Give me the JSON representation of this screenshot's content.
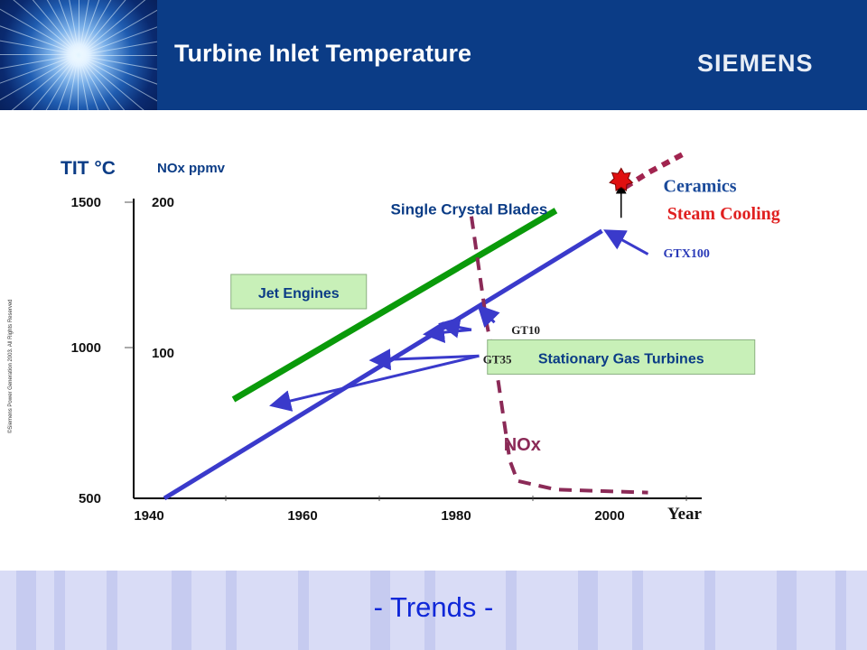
{
  "slide": {
    "title": "Turbine Inlet Temperature",
    "brand": "SIEMENS",
    "copyright": "©Siemens Power Generation 2003. All Rights Reserved",
    "footer": "- Trends -"
  },
  "colors": {
    "header": "#0b3c86",
    "jet_engines": "#0a9a0a",
    "stationary": "#3a3acb",
    "nox": "#8b2a57",
    "ceramics": "#a1244f",
    "label_box": "#c8f0b8",
    "steam_cooling": "#e02020",
    "footer_text": "#0f27d8"
  },
  "chart_data": {
    "type": "line",
    "title": "",
    "xlabel": "Year",
    "ylabel": "TIT °C",
    "y2label": "NOx ppmv",
    "x_ticks": [
      1940,
      1960,
      1980,
      2000
    ],
    "y_ticks": [
      500,
      1000,
      1500
    ],
    "y2_ticks": [
      100,
      200
    ],
    "xlim": [
      1938,
      2012
    ],
    "ylim": [
      500,
      1500
    ],
    "series": [
      {
        "name": "Jet Engines",
        "style": "solid",
        "x": [
          1951,
          1993
        ],
        "y": [
          840,
          1490
        ]
      },
      {
        "name": "Stationary Gas Turbines",
        "style": "solid",
        "x": [
          1942,
          1999
        ],
        "y": [
          500,
          1420
        ]
      },
      {
        "name": "NOx",
        "style": "dashed",
        "x": [
          1982,
          1984,
          1985.5,
          1987,
          1988,
          1993,
          2005
        ],
        "y": [
          1470,
          1100,
          900,
          630,
          560,
          530,
          520
        ]
      },
      {
        "name": "Ceramics",
        "style": "dashed",
        "x": [
          2002,
          2005,
          2010
        ],
        "y": [
          1570,
          1620,
          1690
        ]
      }
    ],
    "annotations": [
      {
        "text": "Single Crystal Blades",
        "x": 1981.7,
        "y": 1493
      },
      {
        "text": "Jet Engines",
        "x": 1959.5,
        "y": 1205
      },
      {
        "text": "Stationary Gas Turbines",
        "x": 2001.5,
        "y": 980
      },
      {
        "text": "NOx",
        "x": 1986.2,
        "y": 680
      },
      {
        "text": "Ceramics",
        "x": 2007,
        "y": 1570
      },
      {
        "text": "Steam Cooling",
        "x": 2007.5,
        "y": 1475
      },
      {
        "text": "GTX100",
        "x": 2007,
        "y": 1345
      },
      {
        "text": "GT10",
        "x": 1987.2,
        "y": 1080
      },
      {
        "text": "GT35",
        "x": 1983.5,
        "y": 980
      }
    ],
    "arrows": [
      {
        "label": "GTX100",
        "from": [
          2005,
          1340
        ],
        "to": [
          1999.5,
          1420
        ]
      },
      {
        "label": "GT10",
        "from": [
          1985,
          1105
        ],
        "to": [
          1983,
          1160
        ]
      },
      {
        "label": "GT10",
        "from": [
          1982,
          1080
        ],
        "to": [
          1978,
          1100
        ]
      },
      {
        "label": "GT10",
        "from": [
          1982,
          1080
        ],
        "to": [
          1976,
          1065
        ]
      },
      {
        "label": "GT35",
        "from": [
          1983,
          990
        ],
        "to": [
          1969,
          975
        ]
      },
      {
        "label": "GT35",
        "from": [
          1983,
          990
        ],
        "to": [
          1956,
          820
        ]
      },
      {
        "label": "Ceramics",
        "from": [
          2001.5,
          1465
        ],
        "to": [
          2001.5,
          1580
        ]
      }
    ]
  }
}
